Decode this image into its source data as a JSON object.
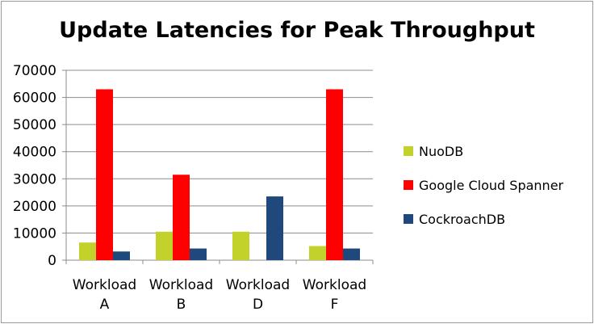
{
  "chart_data": {
    "type": "bar",
    "title": "Update Latencies for Peak Throughput",
    "xlabel": "",
    "ylabel": "",
    "categories": [
      [
        "Workload",
        "A"
      ],
      [
        "Workload",
        "B"
      ],
      [
        "Workload",
        "D"
      ],
      [
        "Workload",
        "F"
      ]
    ],
    "series": [
      {
        "name": "NuoDB",
        "values": [
          6500,
          10500,
          10500,
          5200
        ],
        "color": "#c2d22a"
      },
      {
        "name": "Google Cloud Spanner",
        "values": [
          63000,
          31500,
          0,
          63000
        ],
        "color": "#fe0000"
      },
      {
        "name": "CockroachDB",
        "values": [
          3200,
          4300,
          23500,
          4300
        ],
        "color": "#1f497d"
      }
    ],
    "ylim": [
      0,
      70000
    ],
    "yticks": [
      0,
      10000,
      20000,
      30000,
      40000,
      50000,
      60000,
      70000
    ],
    "grid": true,
    "legend": "right"
  }
}
